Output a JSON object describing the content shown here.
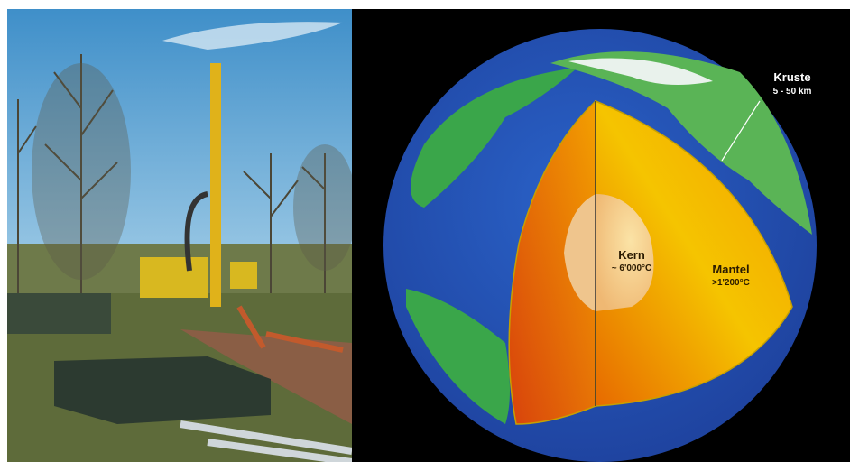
{
  "layers": [
    {
      "name": "Kruste",
      "detail": "5 - 50 km"
    },
    {
      "name": "Kern",
      "detail": "~ 6'000°C"
    },
    {
      "name": "Mantel",
      "detail": ">1'200°C"
    }
  ]
}
